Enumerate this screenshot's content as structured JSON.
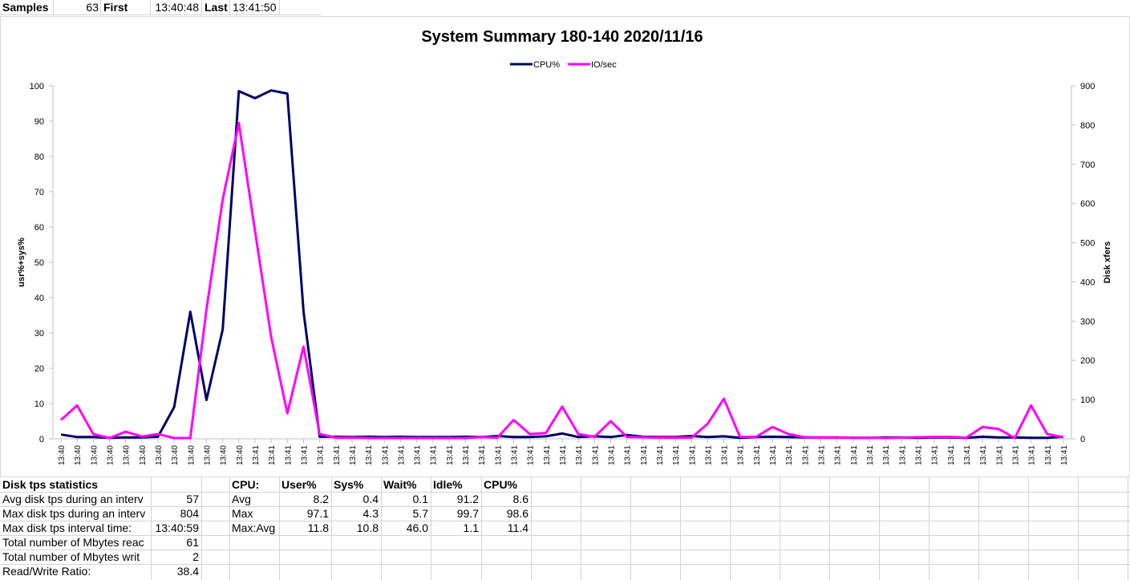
{
  "header": {
    "samples_label": "Samples",
    "samples_value": "63",
    "first_label": "First",
    "first_value": "13:40:48",
    "last_label": "Last",
    "last_value": "13:41:50"
  },
  "chart_data": {
    "type": "line",
    "title": "System Summary 180-140  2020/11/16",
    "ylabel": "usr%+sys%",
    "y2label": "Disk xfers",
    "ylim": [
      0,
      100
    ],
    "y2lim": [
      0,
      900
    ],
    "yticks": [
      "0",
      "10",
      "20",
      "30",
      "40",
      "50",
      "60",
      "70",
      "80",
      "90",
      "100"
    ],
    "y2ticks": [
      "0",
      "100",
      "200",
      "300",
      "400",
      "500",
      "600",
      "700",
      "800",
      "900"
    ],
    "legend_position": "top-center",
    "grid": false,
    "categories": [
      "13:40",
      "13:40",
      "13:40",
      "13:40",
      "13:40",
      "13:40",
      "13:40",
      "13:40",
      "13:40",
      "13:40",
      "13:40",
      "13:40",
      "13:41",
      "13:41",
      "13:41",
      "13:41",
      "13:41",
      "13:41",
      "13:41",
      "13:41",
      "13:41",
      "13:41",
      "13:41",
      "13:41",
      "13:41",
      "13:41",
      "13:41",
      "13:41",
      "13:41",
      "13:41",
      "13:41",
      "13:41",
      "13:41",
      "13:41",
      "13:41",
      "13:41",
      "13:41",
      "13:41",
      "13:41",
      "13:41",
      "13:41",
      "13:41",
      "13:41",
      "13:41",
      "13:41",
      "13:41",
      "13:41",
      "13:41",
      "13:41",
      "13:41",
      "13:41",
      "13:41",
      "13:41",
      "13:41",
      "13:41",
      "13:41",
      "13:41",
      "13:41",
      "13:41",
      "13:41",
      "13:41",
      "13:41",
      "13:41"
    ],
    "series": [
      {
        "name": "CPU%",
        "color": "#000066",
        "axis": "left",
        "values": [
          1.2,
          0.5,
          0.5,
          0.3,
          0.4,
          0.4,
          0.6,
          9,
          36,
          11,
          31,
          98.5,
          96.5,
          98.7,
          97.8,
          36,
          0.6,
          0.6,
          0.5,
          0.6,
          0.5,
          0.6,
          0.5,
          0.5,
          0.5,
          0.6,
          0.5,
          0.8,
          0.5,
          0.5,
          0.7,
          1.5,
          0.5,
          0.7,
          0.5,
          1.1,
          0.6,
          0.5,
          0.5,
          0.8,
          0.5,
          0.7,
          0.3,
          0.5,
          0.6,
          0.5,
          0.4,
          0.4,
          0.4,
          0.3,
          0.3,
          0.4,
          0.4,
          0.3,
          0.4,
          0.4,
          0.3,
          0.6,
          0.4,
          0.4,
          0.3,
          0.3,
          0.6
        ]
      },
      {
        "name": "IO/sec",
        "color": "#ff00ff",
        "axis": "right",
        "values": [
          48,
          85,
          12,
          2,
          18,
          6,
          12,
          2,
          2,
          330,
          610,
          805,
          530,
          260,
          65,
          235,
          12,
          3,
          3,
          2,
          2,
          2,
          2,
          2,
          2,
          2,
          5,
          3,
          48,
          12,
          15,
          82,
          12,
          5,
          45,
          5,
          4,
          3,
          3,
          3,
          38,
          102,
          5,
          5,
          30,
          12,
          4,
          3,
          3,
          3,
          3,
          2,
          3,
          4,
          5,
          5,
          3,
          30,
          25,
          2,
          85,
          12,
          4
        ]
      }
    ]
  },
  "disk_stats": {
    "title": "Disk tps statistics",
    "rows": [
      {
        "label": "Avg disk tps during an interv",
        "value": "57"
      },
      {
        "label": "Max disk tps during an interv",
        "value": "804"
      },
      {
        "label": "Max disk tps interval time:",
        "value": "13:40:59"
      },
      {
        "label": "Total number of Mbytes reac",
        "value": "61"
      },
      {
        "label": "Total number of Mbytes writ",
        "value": "2"
      },
      {
        "label": "Read/Write Ratio:",
        "value": "38.4"
      }
    ]
  },
  "cpu_stats": {
    "title": "CPU:",
    "headers": [
      "User%",
      "Sys%",
      "Wait%",
      "Idle%",
      "CPU%"
    ],
    "rows": [
      {
        "label": "Avg",
        "values": [
          "8.2",
          "0.4",
          "0.1",
          "91.2",
          "8.6"
        ]
      },
      {
        "label": "Max",
        "values": [
          "97.1",
          "4.3",
          "5.7",
          "99.7",
          "98.6"
        ]
      },
      {
        "label": "Max:Avg",
        "values": [
          "11.8",
          "10.8",
          "46.0",
          "1.1",
          "11.4"
        ]
      }
    ]
  }
}
